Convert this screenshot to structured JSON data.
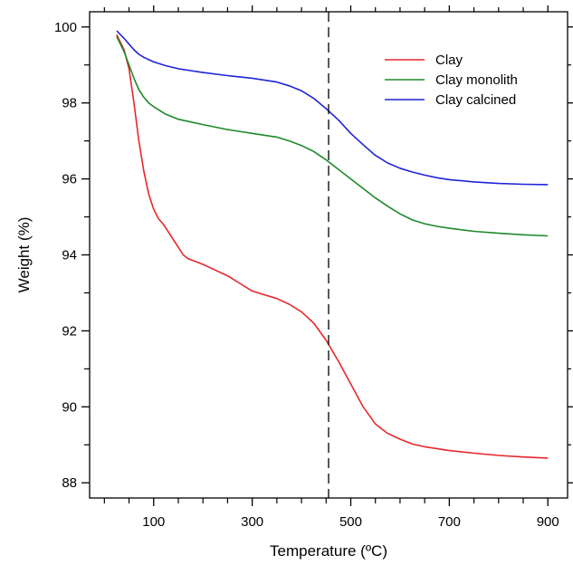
{
  "chart_data": {
    "type": "line",
    "xlabel": "Temperature (ºC)",
    "ylabel": "Weight (%)",
    "xlim": [
      -30,
      940
    ],
    "ylim": [
      87.6,
      100.4
    ],
    "xticks": [
      100,
      300,
      500,
      700,
      900
    ],
    "xtick_labels": [
      "100",
      "300",
      "500",
      "700",
      "900"
    ],
    "x_minor_step": 50,
    "yticks": [
      88,
      90,
      92,
      94,
      96,
      98,
      100
    ],
    "ytick_labels": [
      "88",
      "90",
      "92",
      "94",
      "96",
      "98",
      "100"
    ],
    "y_minor_step": 1,
    "grid": false,
    "legend_position": "top-right",
    "reference_line": {
      "x": 455,
      "style": "dashed",
      "color": "#000000"
    },
    "series": [
      {
        "name": "Clay",
        "color": "#e8262c",
        "x": [
          25,
          40,
          50,
          60,
          70,
          80,
          90,
          100,
          110,
          120,
          130,
          140,
          150,
          160,
          170,
          180,
          200,
          225,
          250,
          275,
          300,
          325,
          350,
          375,
          400,
          425,
          450,
          475,
          500,
          525,
          550,
          575,
          600,
          625,
          650,
          700,
          750,
          800,
          850,
          900
        ],
        "y": [
          99.8,
          99.4,
          98.9,
          98.0,
          97.0,
          96.2,
          95.6,
          95.2,
          94.95,
          94.8,
          94.6,
          94.4,
          94.2,
          94.0,
          93.9,
          93.85,
          93.75,
          93.6,
          93.45,
          93.25,
          93.05,
          92.95,
          92.85,
          92.7,
          92.5,
          92.2,
          91.75,
          91.2,
          90.6,
          90.0,
          89.55,
          89.3,
          89.15,
          89.02,
          88.95,
          88.85,
          88.78,
          88.72,
          88.68,
          88.65
        ]
      },
      {
        "name": "Clay monolith",
        "color": "#1e8a28",
        "x": [
          25,
          40,
          50,
          60,
          70,
          80,
          90,
          100,
          125,
          150,
          175,
          200,
          250,
          300,
          350,
          375,
          400,
          425,
          450,
          475,
          500,
          525,
          550,
          575,
          600,
          625,
          650,
          675,
          700,
          750,
          800,
          850,
          900
        ],
        "y": [
          99.75,
          99.35,
          99.0,
          98.65,
          98.35,
          98.15,
          98.0,
          97.9,
          97.7,
          97.57,
          97.5,
          97.43,
          97.3,
          97.2,
          97.1,
          97.0,
          96.88,
          96.72,
          96.5,
          96.25,
          96.0,
          95.75,
          95.5,
          95.28,
          95.08,
          94.92,
          94.82,
          94.75,
          94.7,
          94.62,
          94.57,
          94.53,
          94.5
        ]
      },
      {
        "name": "Clay calcined",
        "color": "#1f24d8",
        "x": [
          25,
          40,
          50,
          60,
          70,
          80,
          100,
          125,
          150,
          175,
          200,
          250,
          300,
          350,
          375,
          400,
          425,
          450,
          475,
          500,
          525,
          550,
          575,
          600,
          625,
          650,
          675,
          700,
          750,
          800,
          850,
          900
        ],
        "y": [
          99.9,
          99.7,
          99.55,
          99.4,
          99.28,
          99.2,
          99.08,
          98.98,
          98.9,
          98.85,
          98.8,
          98.72,
          98.65,
          98.55,
          98.45,
          98.32,
          98.12,
          97.85,
          97.55,
          97.2,
          96.9,
          96.62,
          96.42,
          96.28,
          96.18,
          96.1,
          96.03,
          95.98,
          95.92,
          95.88,
          95.86,
          95.85
        ]
      }
    ]
  }
}
